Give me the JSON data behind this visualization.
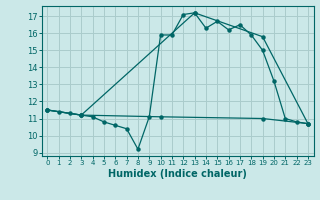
{
  "xlabel": "Humidex (Indice chaleur)",
  "background_color": "#cbe8e8",
  "grid_color": "#aacccc",
  "line_color": "#006666",
  "xlim": [
    -0.5,
    23.5
  ],
  "ylim": [
    8.8,
    17.6
  ],
  "yticks": [
    9,
    10,
    11,
    12,
    13,
    14,
    15,
    16,
    17
  ],
  "xticks": [
    0,
    1,
    2,
    3,
    4,
    5,
    6,
    7,
    8,
    9,
    10,
    11,
    12,
    13,
    14,
    15,
    16,
    17,
    18,
    19,
    20,
    21,
    22,
    23
  ],
  "series1_x": [
    0,
    1,
    2,
    3,
    4,
    5,
    6,
    7,
    8,
    9,
    10,
    11,
    12,
    13,
    14,
    15,
    16,
    17,
    18,
    19,
    20,
    21,
    22,
    23
  ],
  "series1_y": [
    11.5,
    11.4,
    11.3,
    11.2,
    11.1,
    10.8,
    10.6,
    10.4,
    9.2,
    11.1,
    15.9,
    15.9,
    17.1,
    17.2,
    16.3,
    16.7,
    16.2,
    16.5,
    15.9,
    15.0,
    13.2,
    11.0,
    10.8,
    10.7
  ],
  "series2_x": [
    0,
    3,
    13,
    19,
    23
  ],
  "series2_y": [
    11.5,
    11.2,
    17.2,
    15.8,
    10.7
  ],
  "series3_x": [
    0,
    3,
    10,
    19,
    23
  ],
  "series3_y": [
    11.5,
    11.2,
    11.1,
    11.0,
    10.7
  ]
}
